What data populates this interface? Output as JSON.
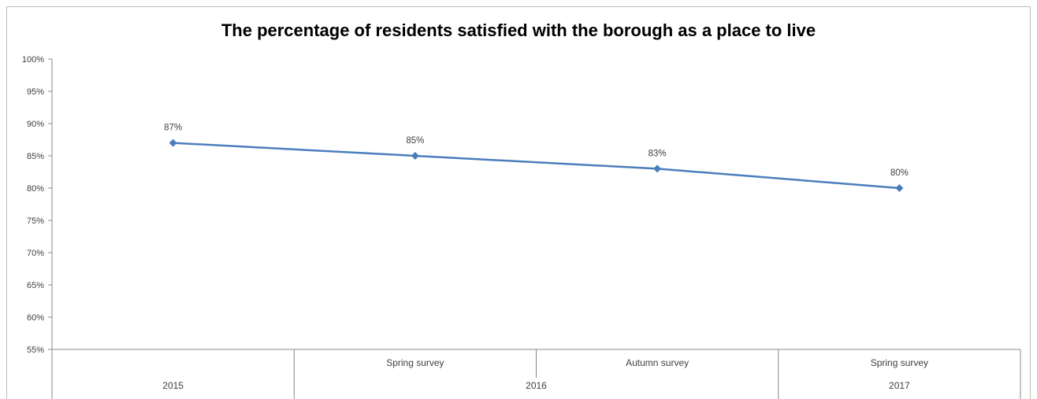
{
  "chart_data": {
    "type": "line",
    "title": "The percentage of residents satisfied with the borough as a place to live",
    "xlabel": "",
    "ylabel": "",
    "ylim": [
      55,
      100
    ],
    "y_ticks": [
      "55%",
      "60%",
      "65%",
      "70%",
      "75%",
      "80%",
      "85%",
      "90%",
      "95%",
      "100%"
    ],
    "categories": [
      {
        "sub": "",
        "group": "2015"
      },
      {
        "sub": "Spring survey",
        "group": "2016"
      },
      {
        "sub": "Autumn survey",
        "group": "2016"
      },
      {
        "sub": "Spring survey",
        "group": "2017"
      }
    ],
    "groups": [
      "2015",
      "2016",
      "2017"
    ],
    "values": [
      87,
      85,
      83,
      80
    ],
    "data_labels": [
      "87%",
      "85%",
      "83%",
      "80%"
    ],
    "grid": false,
    "legend": "none",
    "series_color": "#4a7ebb"
  }
}
